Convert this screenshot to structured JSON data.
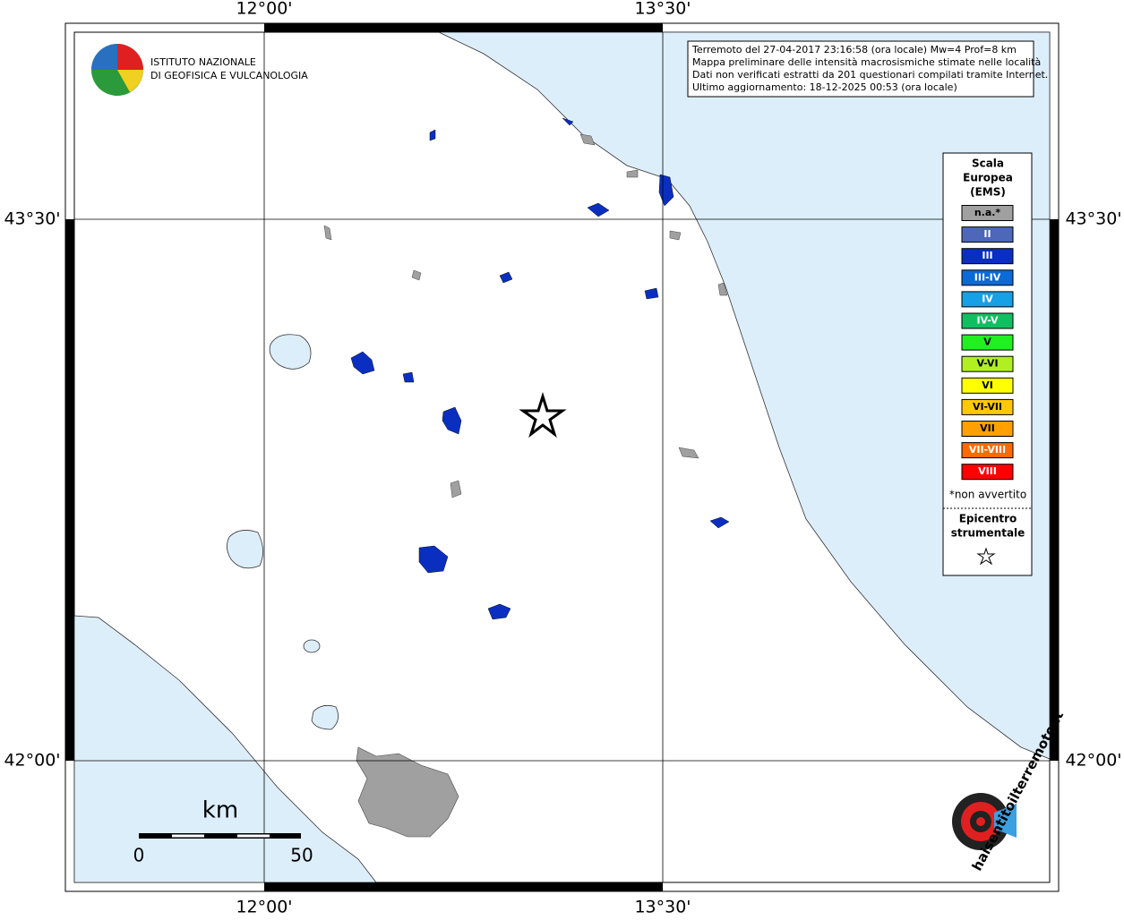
{
  "map": {
    "lon_labels": [
      "12°00'",
      "13°30'"
    ],
    "lat_labels": [
      "43°30'",
      "42°00'"
    ],
    "logo": {
      "line1": "ISTITUTO NAZIONALE",
      "line2": "DI GEOFISICA E VULCANOLOGIA"
    },
    "info": [
      "Terremoto del 27-04-2017 23:16:58 (ora locale) Mw=4 Prof=8 km",
      "Mappa preliminare delle intensità macrosismiche stimate nelle località",
      "Dati non verificati estratti da 201 questionari compilati tramite Internet.",
      "Ultimo aggiornamento: 18-12-2025 00:53 (ora locale)"
    ],
    "legend": {
      "title": [
        "Scala",
        "Europea",
        "(EMS)"
      ],
      "items": [
        {
          "label": "n.a.*",
          "color": "#a0a0a0"
        },
        {
          "label": "II",
          "color": "#4d68b8"
        },
        {
          "label": "III",
          "color": "#0a2fc0"
        },
        {
          "label": "III-IV",
          "color": "#0a6ad8"
        },
        {
          "label": "IV",
          "color": "#16a0e6"
        },
        {
          "label": "IV-V",
          "color": "#10c060"
        },
        {
          "label": "V",
          "color": "#20f020"
        },
        {
          "label": "V-VI",
          "color": "#b0f020"
        },
        {
          "label": "VI",
          "color": "#ffff00"
        },
        {
          "label": "VI-VII",
          "color": "#ffc800"
        },
        {
          "label": "VII",
          "color": "#ffa000"
        },
        {
          "label": "VII-VIII",
          "color": "#ff6a00"
        },
        {
          "label": "VIII",
          "color": "#ff0000"
        }
      ],
      "note": "*non avvertito",
      "epicenter": [
        "Epicentro",
        "strumentale"
      ]
    },
    "scale": {
      "unit": "km",
      "start": "0",
      "end": "50"
    },
    "site": "haisentitoilterremoto.it"
  }
}
